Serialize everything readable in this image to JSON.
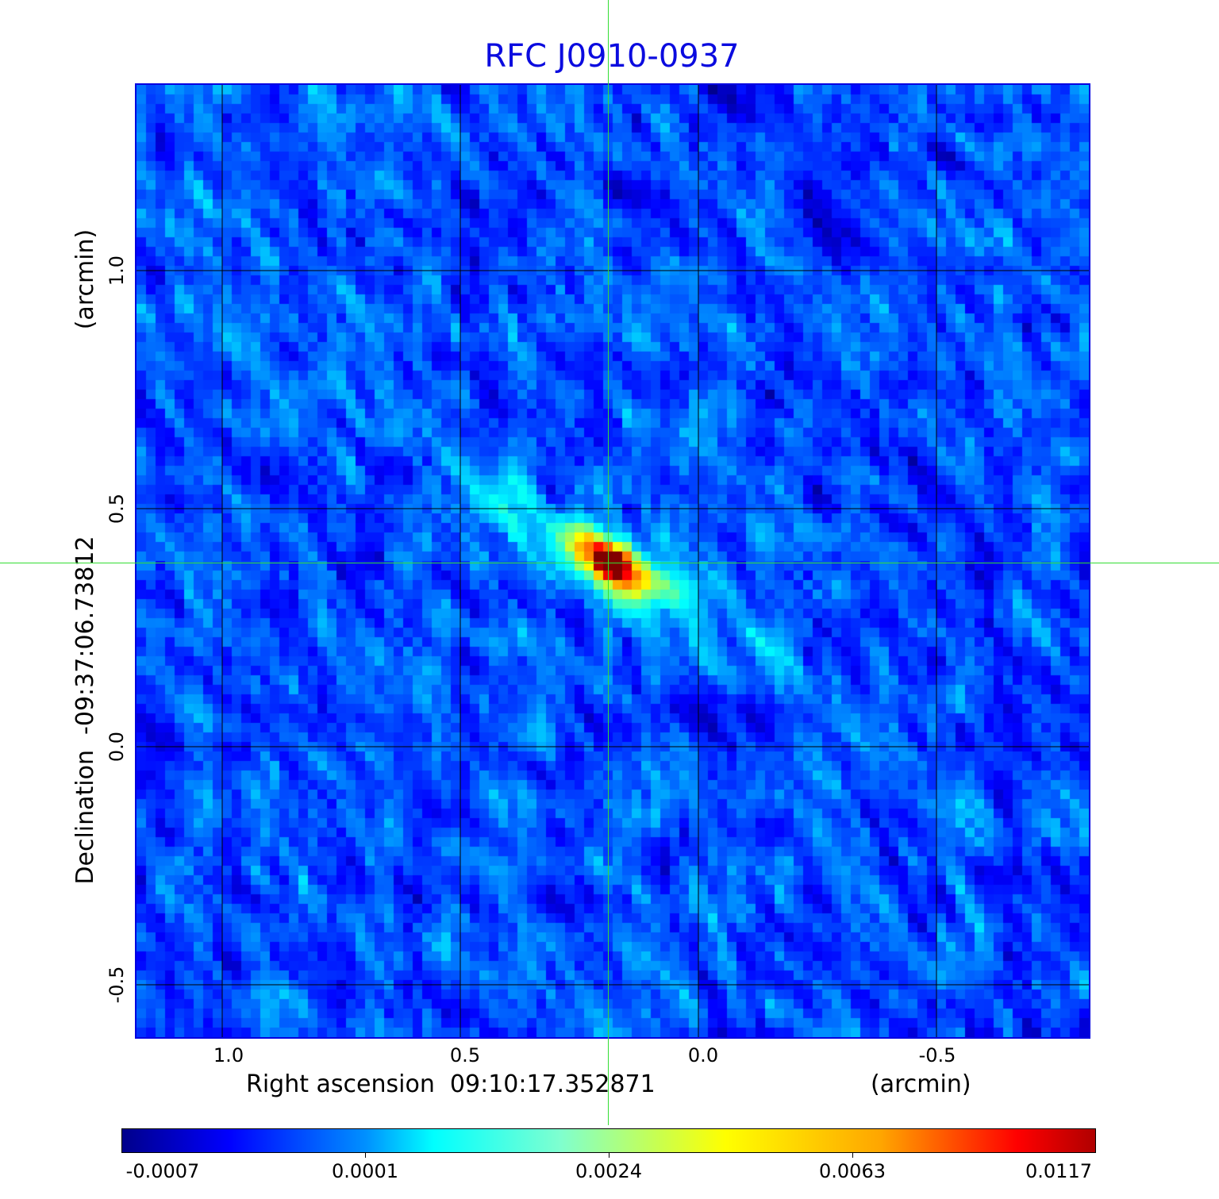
{
  "title": "RFC J0910-0937",
  "chart_data": {
    "type": "heatmap",
    "title": "RFC J0910-0937",
    "xlabel": "Right ascension  09:10:17.352871",
    "xunit": "(arcmin)",
    "ylabel": "Declination  -09:37:06.73812",
    "yunit": "(arcmin)",
    "xlim": [
      1.18,
      -0.82
    ],
    "ylim": [
      -0.61,
      1.39
    ],
    "xticks": [
      "1.0",
      "0.5",
      "0.0",
      "-0.5"
    ],
    "xtick_values": [
      1.0,
      0.5,
      0.0,
      -0.5
    ],
    "yticks": [
      "1.0",
      "0.5",
      "0.0",
      "-0.5"
    ],
    "ytick_values": [
      1.0,
      0.5,
      0.0,
      -0.5
    ],
    "grid": true,
    "crosshair": [
      0.185,
      0.387
    ],
    "peak": [
      0.185,
      0.387
    ],
    "colormap": "jet",
    "colorbar": {
      "ticks": [
        "-0.0007",
        "0.0001",
        "0.0024",
        "0.0063",
        "0.0117"
      ],
      "values": [
        -0.0007,
        0.0001,
        0.0024,
        0.0063,
        0.0117
      ]
    }
  },
  "colors": {
    "title": "#0b0bdf",
    "frame": "#0000e0",
    "crosshair": "#33dd33"
  }
}
